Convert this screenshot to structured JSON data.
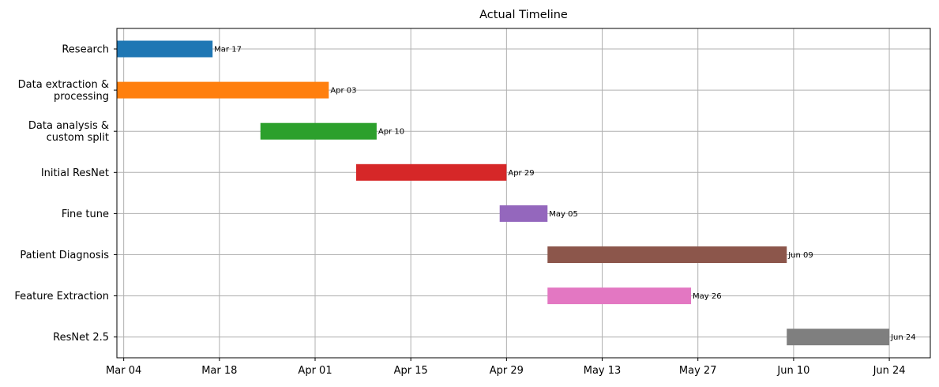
{
  "chart_data": {
    "type": "bar",
    "orientation": "horizontal",
    "title": "Actual Timeline",
    "xlabel": "",
    "ylabel": "",
    "xlim": [
      "2024-03-03",
      "2024-06-30"
    ],
    "grid": true,
    "xticks": [
      {
        "date": "2024-03-04",
        "label": "Mar 04"
      },
      {
        "date": "2024-03-18",
        "label": "Mar 18"
      },
      {
        "date": "2024-04-01",
        "label": "Apr 01"
      },
      {
        "date": "2024-04-15",
        "label": "Apr 15"
      },
      {
        "date": "2024-04-29",
        "label": "Apr 29"
      },
      {
        "date": "2024-05-13",
        "label": "May 13"
      },
      {
        "date": "2024-05-27",
        "label": "May 27"
      },
      {
        "date": "2024-06-10",
        "label": "Jun 10"
      },
      {
        "date": "2024-06-24",
        "label": "Jun 24"
      }
    ],
    "tasks": [
      {
        "name": "Research",
        "start": "2024-03-03",
        "end": "2024-03-17",
        "end_label": "Mar 17",
        "color": "#1f77b4"
      },
      {
        "name": "Data extraction &\nprocessing",
        "start": "2024-03-03",
        "end": "2024-04-03",
        "end_label": "Apr 03",
        "color": "#ff7f0e"
      },
      {
        "name": "Data analysis &\ncustom split",
        "start": "2024-03-24",
        "end": "2024-04-10",
        "end_label": "Apr 10",
        "color": "#2ca02c"
      },
      {
        "name": "Initial ResNet",
        "start": "2024-04-07",
        "end": "2024-04-29",
        "end_label": "Apr 29",
        "color": "#d62728"
      },
      {
        "name": "Fine tune",
        "start": "2024-04-28",
        "end": "2024-05-05",
        "end_label": "May 05",
        "color": "#9467bd"
      },
      {
        "name": "Patient Diagnosis",
        "start": "2024-05-05",
        "end": "2024-06-09",
        "end_label": "Jun 09",
        "color": "#8c564b"
      },
      {
        "name": "Feature Extraction",
        "start": "2024-05-05",
        "end": "2024-05-26",
        "end_label": "May 26",
        "color": "#e377c2"
      },
      {
        "name": "ResNet 2.5",
        "start": "2024-06-09",
        "end": "2024-06-24",
        "end_label": "Jun 24",
        "color": "#7f7f7f"
      }
    ]
  }
}
